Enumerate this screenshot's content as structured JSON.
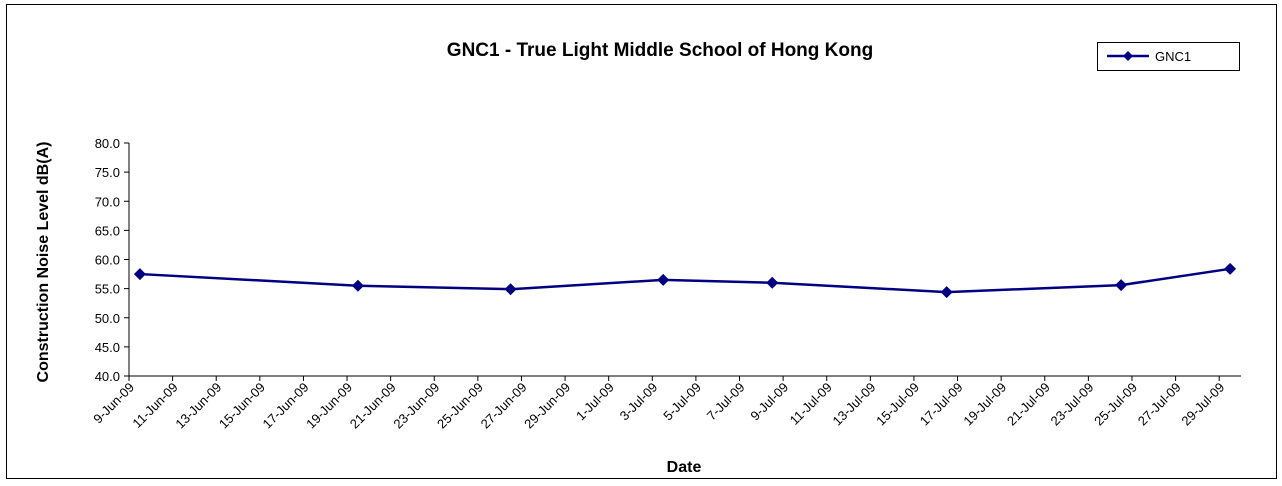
{
  "chart_data": {
    "type": "line",
    "title": "GNC1 - True Light Middle School of Hong Kong",
    "xlabel": "Date",
    "ylabel": "Construction Noise Level  dB(A)",
    "x": [
      "2009-06-09",
      "2009-06-19",
      "2009-06-26",
      "2009-07-03",
      "2009-07-08",
      "2009-07-16",
      "2009-07-24",
      "2009-07-29"
    ],
    "series": [
      {
        "name": "GNC1",
        "color": "#000080",
        "values": [
          57.5,
          55.5,
          54.9,
          56.5,
          56.0,
          54.4,
          55.6,
          58.4
        ]
      }
    ],
    "xlim": [
      "2009-06-09",
      "2009-07-30"
    ],
    "xticks": [
      {
        "value": "2009-06-09",
        "label": "9-Jun-09"
      },
      {
        "value": "2009-06-11",
        "label": "11-Jun-09"
      },
      {
        "value": "2009-06-13",
        "label": "13-Jun-09"
      },
      {
        "value": "2009-06-15",
        "label": "15-Jun-09"
      },
      {
        "value": "2009-06-17",
        "label": "17-Jun-09"
      },
      {
        "value": "2009-06-19",
        "label": "19-Jun-09"
      },
      {
        "value": "2009-06-21",
        "label": "21-Jun-09"
      },
      {
        "value": "2009-06-23",
        "label": "23-Jun-09"
      },
      {
        "value": "2009-06-25",
        "label": "25-Jun-09"
      },
      {
        "value": "2009-06-27",
        "label": "27-Jun-09"
      },
      {
        "value": "2009-06-29",
        "label": "29-Jun-09"
      },
      {
        "value": "2009-07-01",
        "label": "1-Jul-09"
      },
      {
        "value": "2009-07-03",
        "label": "3-Jul-09"
      },
      {
        "value": "2009-07-05",
        "label": "5-Jul-09"
      },
      {
        "value": "2009-07-07",
        "label": "7-Jul-09"
      },
      {
        "value": "2009-07-09",
        "label": "9-Jul-09"
      },
      {
        "value": "2009-07-11",
        "label": "11-Jul-09"
      },
      {
        "value": "2009-07-13",
        "label": "13-Jul-09"
      },
      {
        "value": "2009-07-15",
        "label": "15-Jul-09"
      },
      {
        "value": "2009-07-17",
        "label": "17-Jul-09"
      },
      {
        "value": "2009-07-19",
        "label": "19-Jul-09"
      },
      {
        "value": "2009-07-21",
        "label": "21-Jul-09"
      },
      {
        "value": "2009-07-23",
        "label": "23-Jul-09"
      },
      {
        "value": "2009-07-25",
        "label": "25-Jul-09"
      },
      {
        "value": "2009-07-27",
        "label": "27-Jul-09"
      },
      {
        "value": "2009-07-29",
        "label": "29-Jul-09"
      }
    ],
    "ylim": [
      40,
      80
    ],
    "yticks": [
      {
        "value": 40,
        "label": "40.0"
      },
      {
        "value": 45,
        "label": "45.0"
      },
      {
        "value": 50,
        "label": "50.0"
      },
      {
        "value": 55,
        "label": "55.0"
      },
      {
        "value": 60,
        "label": "60.0"
      },
      {
        "value": 65,
        "label": "65.0"
      },
      {
        "value": 70,
        "label": "70.0"
      },
      {
        "value": 75,
        "label": "75.0"
      },
      {
        "value": 80,
        "label": "80.0"
      }
    ],
    "grid": false,
    "legend": "upper right"
  }
}
